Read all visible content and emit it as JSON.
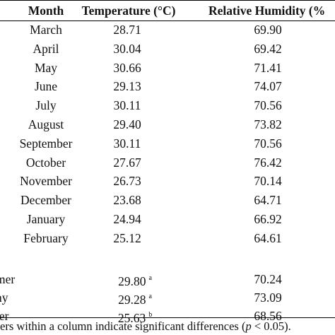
{
  "table": {
    "headers": {
      "month": "Month",
      "temperature": "Temperature (°C)",
      "humidity": "Relative Humidity (%"
    },
    "months": [
      {
        "month": "March",
        "temperature": "28.71",
        "humidity": "69.90"
      },
      {
        "month": "April",
        "temperature": "30.04",
        "humidity": "69.42"
      },
      {
        "month": "May",
        "temperature": "30.66",
        "humidity": "71.41"
      },
      {
        "month": "June",
        "temperature": "29.13",
        "humidity": "74.07"
      },
      {
        "month": "July",
        "temperature": "30.11",
        "humidity": "70.56"
      },
      {
        "month": "August",
        "temperature": "29.40",
        "humidity": "73.82"
      },
      {
        "month": "September",
        "temperature": "30.11",
        "humidity": "70.56"
      },
      {
        "month": "October",
        "temperature": "27.67",
        "humidity": "76.42"
      },
      {
        "month": "November",
        "temperature": "26.73",
        "humidity": "70.14"
      },
      {
        "month": "December",
        "temperature": "23.68",
        "humidity": "64.71"
      },
      {
        "month": "January",
        "temperature": "24.94",
        "humidity": "66.92"
      },
      {
        "month": "February",
        "temperature": "25.12",
        "humidity": "64.61"
      }
    ],
    "seasons": [
      {
        "season": "mer",
        "temperature": "29.80",
        "sig": "a",
        "humidity": "70.24"
      },
      {
        "season": "ny",
        "temperature": "29.28",
        "sig": "a",
        "humidity": "73.09"
      },
      {
        "season": "ter",
        "temperature": "25.63",
        "sig": "b",
        "humidity": "68.56"
      }
    ]
  },
  "footnote": {
    "prefix": "ers within a column indicate significant differences (",
    "p_symbol": "p",
    "suffix": " < 0.05)."
  }
}
